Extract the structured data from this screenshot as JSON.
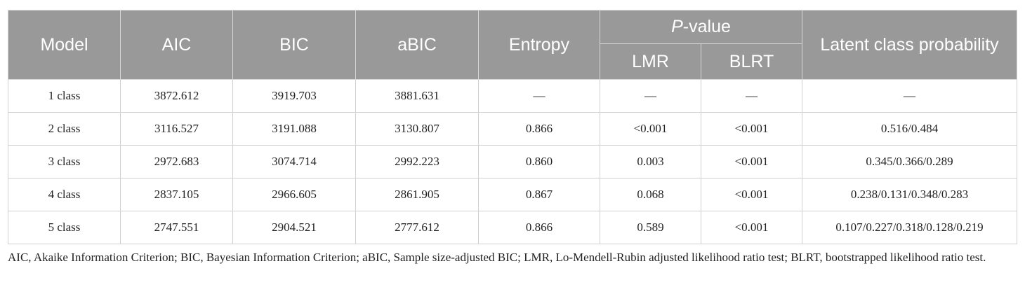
{
  "header": {
    "model": "Model",
    "aic": "AIC",
    "bic": "BIC",
    "abic": "aBIC",
    "entropy": "Entropy",
    "pvalue_italic": "P",
    "pvalue_rest": "-value",
    "lmr": "LMR",
    "blrt": "BLRT",
    "latent": "Latent class probability"
  },
  "rows": [
    {
      "model": "1 class",
      "aic": "3872.612",
      "bic": "3919.703",
      "abic": "3881.631",
      "entropy": "—",
      "lmr": "—",
      "blrt": "—",
      "latent": "—"
    },
    {
      "model": "2 class",
      "aic": "3116.527",
      "bic": "3191.088",
      "abic": "3130.807",
      "entropy": "0.866",
      "lmr": "<0.001",
      "blrt": "<0.001",
      "latent": "0.516/0.484"
    },
    {
      "model": "3 class",
      "aic": "2972.683",
      "bic": "3074.714",
      "abic": "2992.223",
      "entropy": "0.860",
      "lmr": "0.003",
      "blrt": "<0.001",
      "latent": "0.345/0.366/0.289"
    },
    {
      "model": "4 class",
      "aic": "2837.105",
      "bic": "2966.605",
      "abic": "2861.905",
      "entropy": "0.867",
      "lmr": "0.068",
      "blrt": "<0.001",
      "latent": "0.238/0.131/0.348/0.283"
    },
    {
      "model": "5 class",
      "aic": "2747.551",
      "bic": "2904.521",
      "abic": "2777.612",
      "entropy": "0.866",
      "lmr": "0.589",
      "blrt": "<0.001",
      "latent": "0.107/0.227/0.318/0.128/0.219"
    }
  ],
  "footnote": "AIC, Akaike Information Criterion; BIC, Bayesian Information Criterion; aBIC, Sample size-adjusted BIC; LMR, Lo-Mendell-Rubin adjusted likelihood ratio test; BLRT, bootstrapped likelihood ratio test."
}
